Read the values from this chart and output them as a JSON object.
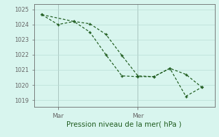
{
  "line1_x": [
    0,
    1,
    2,
    3,
    4,
    5,
    6,
    7,
    8,
    9,
    10
  ],
  "line1_y": [
    1024.65,
    1024.0,
    1024.2,
    1024.05,
    1023.35,
    1021.95,
    1020.6,
    1020.55,
    1021.1,
    1020.7,
    1019.85
  ],
  "line2_x": [
    0,
    2,
    3,
    4,
    5,
    6,
    7,
    8,
    9,
    10
  ],
  "line2_y": [
    1024.65,
    1024.2,
    1023.5,
    1022.0,
    1020.6,
    1020.55,
    1020.55,
    1021.1,
    1019.25,
    1019.85
  ],
  "mar_x_pos": 1,
  "mer_x_pos": 6,
  "yticks": [
    1019,
    1020,
    1021,
    1022,
    1023,
    1024,
    1025
  ],
  "ylim": [
    1018.55,
    1025.35
  ],
  "xlim": [
    -0.5,
    10.8
  ],
  "line_color": "#1f5c1f",
  "bg_color": "#d8f5ee",
  "grid_color": "#b8ddd5",
  "axis_color": "#666666",
  "xlabel": "Pression niveau de la mer( hPa )",
  "xlabel_color": "#1f5c1f",
  "tick_label_color": "#1f5c1f",
  "day_label_color": "#1f5c1f",
  "tick_fontsize": 6.0,
  "xlabel_fontsize": 7.5,
  "day_fontsize": 6.5
}
